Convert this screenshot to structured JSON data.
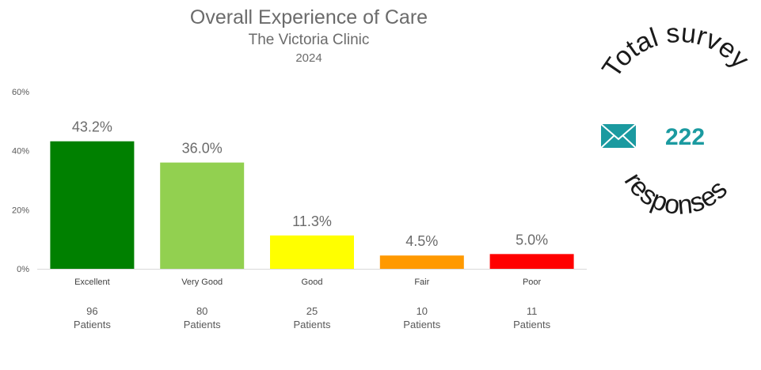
{
  "chart_data": {
    "type": "bar",
    "title": "Overall Experience of Care",
    "subtitle": "The Victoria Clinic",
    "year": "2024",
    "categories": [
      "Excellent",
      "Very Good",
      "Good",
      "Fair",
      "Poor"
    ],
    "values": [
      43.2,
      36.0,
      11.3,
      4.5,
      5.0
    ],
    "value_labels": [
      "43.2%",
      "36.0%",
      "11.3%",
      "4.5%",
      "5.0%"
    ],
    "colors": [
      "#008000",
      "#92d050",
      "#ffff00",
      "#ff9900",
      "#ff0000"
    ],
    "patient_counts": [
      "96",
      "80",
      "25",
      "10",
      "11"
    ],
    "patients_label": "Patients",
    "yticks": [
      "0%",
      "20%",
      "40%",
      "60%"
    ],
    "ylim": [
      0,
      60
    ],
    "grid": false
  },
  "badge": {
    "top_text": "Total survey",
    "bottom_text": "responses",
    "count": "222",
    "icon": "envelope-icon",
    "icon_color": "#1b9aa0"
  }
}
